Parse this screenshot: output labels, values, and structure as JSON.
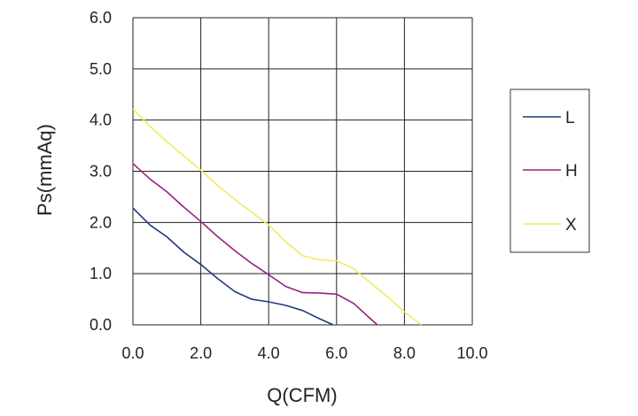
{
  "chart_data": {
    "type": "line",
    "xlabel": "Q(CFM)",
    "ylabel": "Ps(mmAq)",
    "xlim": [
      0,
      10
    ],
    "ylim": [
      0,
      6
    ],
    "x_ticks": [
      "0.0",
      "2.0",
      "4.0",
      "6.0",
      "8.0",
      "10.0"
    ],
    "y_ticks": [
      "0.0",
      "1.0",
      "2.0",
      "3.0",
      "4.0",
      "5.0",
      "6.0"
    ],
    "grid": true,
    "legend_position": "right",
    "series": [
      {
        "name": "L",
        "color": "#1f3a7a",
        "points": [
          [
            0,
            2.28
          ],
          [
            0.5,
            1.95
          ],
          [
            1.0,
            1.72
          ],
          [
            1.5,
            1.42
          ],
          [
            2.0,
            1.18
          ],
          [
            2.5,
            0.9
          ],
          [
            3.0,
            0.65
          ],
          [
            3.5,
            0.5
          ],
          [
            4.0,
            0.45
          ],
          [
            4.5,
            0.38
          ],
          [
            5.0,
            0.28
          ],
          [
            5.5,
            0.12
          ],
          [
            5.9,
            0.0
          ]
        ]
      },
      {
        "name": "H",
        "color": "#9b1f7f",
        "points": [
          [
            0,
            3.15
          ],
          [
            0.5,
            2.85
          ],
          [
            1.0,
            2.6
          ],
          [
            1.5,
            2.3
          ],
          [
            2.0,
            2.02
          ],
          [
            2.5,
            1.72
          ],
          [
            3.0,
            1.45
          ],
          [
            3.5,
            1.2
          ],
          [
            4.0,
            0.98
          ],
          [
            4.5,
            0.75
          ],
          [
            5.0,
            0.63
          ],
          [
            5.5,
            0.62
          ],
          [
            6.0,
            0.6
          ],
          [
            6.5,
            0.42
          ],
          [
            7.0,
            0.12
          ],
          [
            7.2,
            0.0
          ]
        ]
      },
      {
        "name": "X",
        "color": "#f2ea5e",
        "points": [
          [
            0,
            4.22
          ],
          [
            0.5,
            3.88
          ],
          [
            1.0,
            3.58
          ],
          [
            1.5,
            3.3
          ],
          [
            2.0,
            3.02
          ],
          [
            2.5,
            2.72
          ],
          [
            3.0,
            2.45
          ],
          [
            3.5,
            2.2
          ],
          [
            4.0,
            1.95
          ],
          [
            4.5,
            1.62
          ],
          [
            5.0,
            1.35
          ],
          [
            5.5,
            1.27
          ],
          [
            6.0,
            1.25
          ],
          [
            6.5,
            1.1
          ],
          [
            7.0,
            0.82
          ],
          [
            7.5,
            0.55
          ],
          [
            8.0,
            0.25
          ],
          [
            8.5,
            0.0
          ]
        ]
      }
    ]
  }
}
